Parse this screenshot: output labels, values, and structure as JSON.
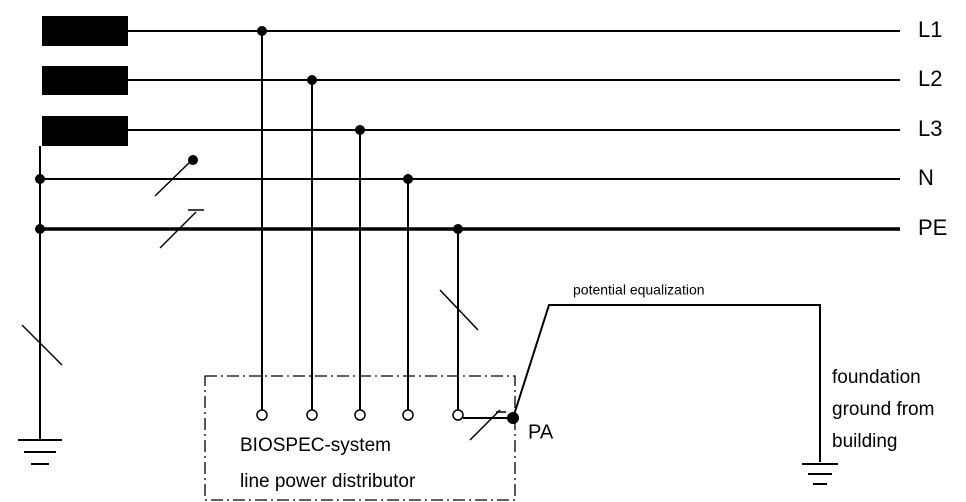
{
  "conductors": [
    {
      "label": "L1"
    },
    {
      "label": "L2"
    },
    {
      "label": "L3"
    },
    {
      "label": "N"
    },
    {
      "label": "PE"
    }
  ],
  "equalization": {
    "label": "potential equalization"
  },
  "foundation": {
    "lines": [
      "foundation",
      "ground from",
      "building"
    ]
  },
  "distributor": {
    "lines": [
      "BIOSPEC-system",
      "line power distributor"
    ],
    "terminal": "PA"
  }
}
